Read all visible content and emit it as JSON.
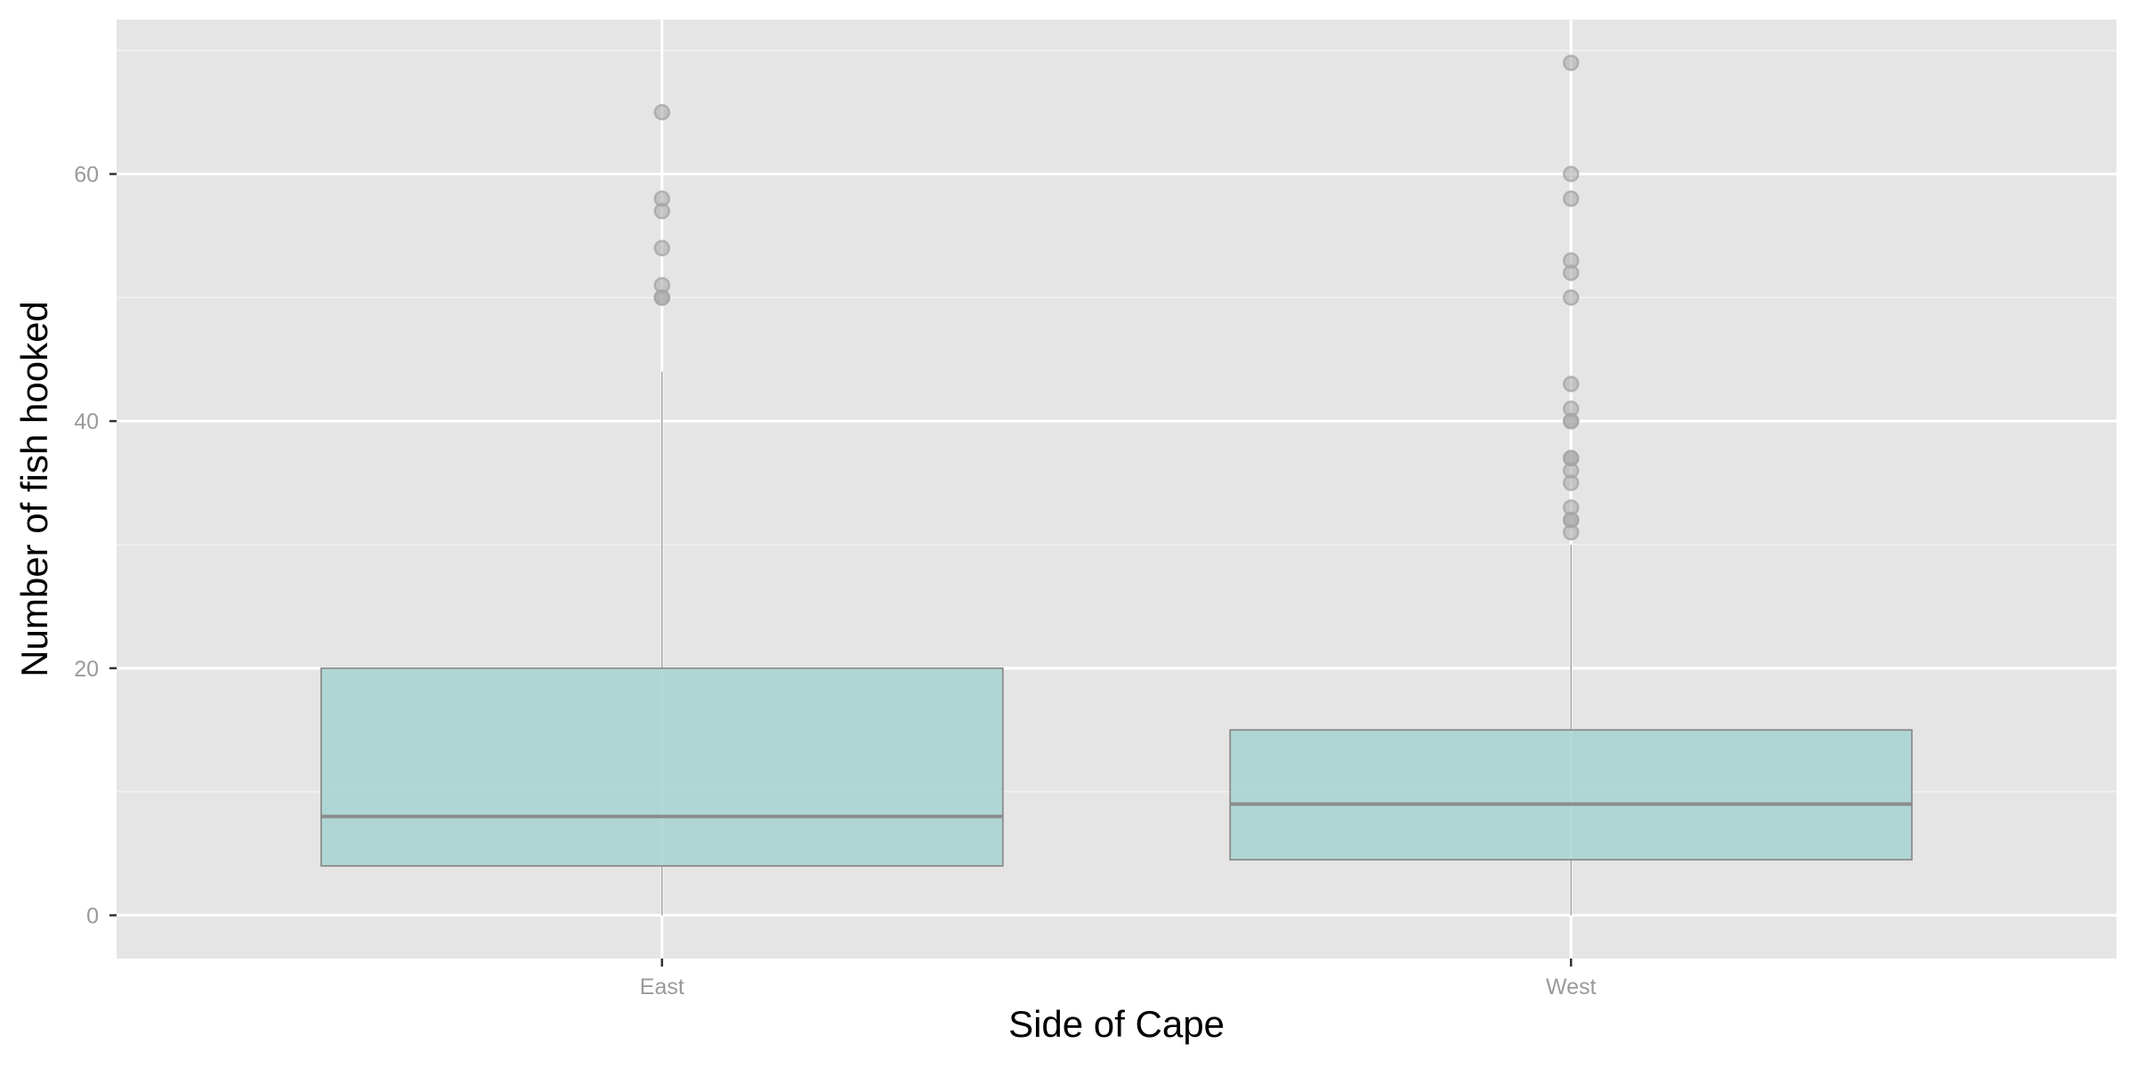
{
  "chart_data": {
    "type": "box",
    "title": "",
    "xlabel": "Side of Cape",
    "ylabel": "Number of fish hooked",
    "categories": [
      "East",
      "West"
    ],
    "ylim": [
      -3.5,
      72.5
    ],
    "y_ticks": [
      0,
      20,
      40,
      60
    ],
    "grid": true,
    "legend": "none",
    "boxes": [
      {
        "category": "East",
        "whisker_low": 0,
        "q1": 4,
        "median": 8,
        "q3": 20,
        "whisker_high": 44,
        "outliers": [
          50,
          50,
          51,
          54,
          57,
          58,
          65
        ]
      },
      {
        "category": "West",
        "whisker_low": 0,
        "q1": 4.5,
        "median": 9,
        "q3": 15,
        "whisker_high": 30,
        "outliers": [
          31,
          32,
          32,
          33,
          35,
          36,
          37,
          37,
          40,
          40,
          41,
          43,
          50,
          52,
          53,
          58,
          60,
          69
        ]
      }
    ],
    "colors": {
      "panel_background": "#e5e5e5",
      "grid_major": "#ffffff",
      "grid_minor": "#f2f2f2",
      "box_fill": "#a6d3d2",
      "box_outline": "#8c8c8c",
      "median_line": "#8c8c8c",
      "whisker": "#8c8c8c",
      "outlier": "#a6a6a6"
    }
  }
}
